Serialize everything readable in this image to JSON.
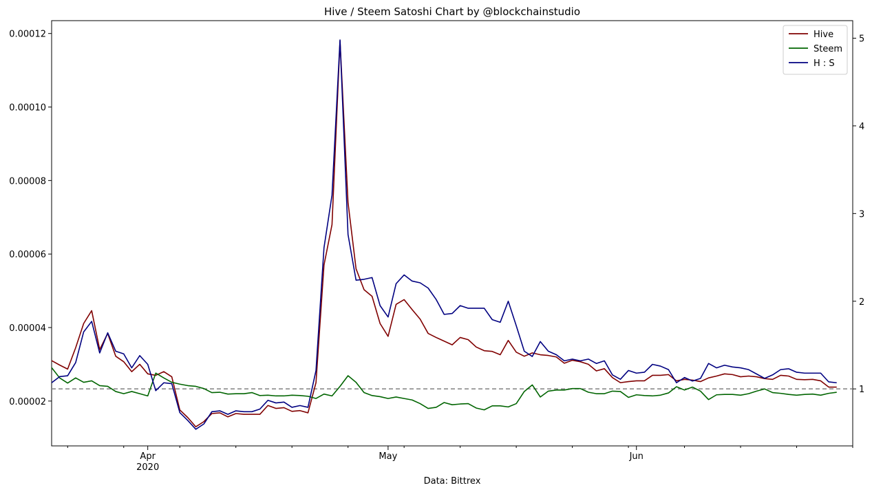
{
  "chart_data": {
    "type": "line",
    "title": "Hive / Steem Satoshi Chart by @blockchainstudio",
    "xlabel": "Data: Bittrex",
    "x_range": [
      "2020-03-20",
      "2020-06-28"
    ],
    "x_ticks": [
      {
        "date": "2020-04-01",
        "label": "Apr",
        "sublabel": "2020"
      },
      {
        "date": "2020-05-01",
        "label": "May",
        "sublabel": ""
      },
      {
        "date": "2020-06-01",
        "label": "Jun",
        "sublabel": ""
      }
    ],
    "x_minor_ticks": [
      "2020-03-22",
      "2020-03-29",
      "2020-04-05",
      "2020-04-12",
      "2020-04-19",
      "2020-04-26",
      "2020-05-03",
      "2020-05-10",
      "2020-05-17",
      "2020-05-24",
      "2020-05-31",
      "2020-06-07",
      "2020-06-14",
      "2020-06-21",
      "2020-06-28"
    ],
    "y_left": {
      "range": [
        7.8e-06,
        0.0001235
      ],
      "ticks": [
        2e-05,
        4e-05,
        6e-05,
        8e-05,
        0.0001,
        0.00012
      ],
      "tick_labels": [
        "0.00002",
        "0.00004",
        "0.00006",
        "0.00008",
        "0.00010",
        "0.00012"
      ]
    },
    "y_right": {
      "range": [
        0.35,
        5.2
      ],
      "ticks": [
        1,
        2,
        3,
        4,
        5
      ],
      "tick_labels": [
        "1",
        "2",
        "3",
        "4",
        "5"
      ]
    },
    "reference_line": {
      "axis": "right",
      "value": 1,
      "style": "dashed",
      "color": "#808080"
    },
    "legend": {
      "placement": "top-right"
    },
    "start_date": "2020-03-20",
    "series": [
      {
        "name": "Hive",
        "axis": "left",
        "color": "#800000",
        "values": [
          3.1e-05,
          2.98e-05,
          2.87e-05,
          3.45e-05,
          4.11e-05,
          4.46e-05,
          3.4e-05,
          3.84e-05,
          3.22e-05,
          3.07e-05,
          2.8e-05,
          3e-05,
          2.74e-05,
          2.7e-05,
          2.8e-05,
          2.66e-05,
          1.76e-05,
          1.55e-05,
          1.3e-05,
          1.44e-05,
          1.66e-05,
          1.68e-05,
          1.57e-05,
          1.66e-05,
          1.64e-05,
          1.64e-05,
          1.64e-05,
          1.88e-05,
          1.8e-05,
          1.82e-05,
          1.72e-05,
          1.74e-05,
          1.68e-05,
          2.5e-05,
          5.7e-05,
          6.8e-05,
          0.000118,
          7.4e-05,
          5.6e-05,
          5.03e-05,
          4.85e-05,
          4.11e-05,
          3.76e-05,
          4.63e-05,
          4.76e-05,
          4.49e-05,
          4.23e-05,
          3.84e-05,
          3.73e-05,
          3.63e-05,
          3.53e-05,
          3.73e-05,
          3.67e-05,
          3.47e-05,
          3.37e-05,
          3.35e-05,
          3.26e-05,
          3.65e-05,
          3.33e-05,
          3.22e-05,
          3.31e-05,
          3.26e-05,
          3.24e-05,
          3.2e-05,
          3.03e-05,
          3.11e-05,
          3.07e-05,
          3e-05,
          2.82e-05,
          2.88e-05,
          2.64e-05,
          2.5e-05,
          2.53e-05,
          2.55e-05,
          2.55e-05,
          2.7e-05,
          2.7e-05,
          2.72e-05,
          2.55e-05,
          2.59e-05,
          2.57e-05,
          2.53e-05,
          2.63e-05,
          2.68e-05,
          2.74e-05,
          2.72e-05,
          2.66e-05,
          2.68e-05,
          2.66e-05,
          2.61e-05,
          2.59e-05,
          2.7e-05,
          2.68e-05,
          2.59e-05,
          2.58e-05,
          2.59e-05,
          2.55e-05,
          2.38e-05,
          2.38e-05
        ]
      },
      {
        "name": "Steem",
        "axis": "left",
        "color": "#006400",
        "values": [
          2.91e-05,
          2.63e-05,
          2.49e-05,
          2.63e-05,
          2.51e-05,
          2.55e-05,
          2.42e-05,
          2.4e-05,
          2.26e-05,
          2.2e-05,
          2.26e-05,
          2.2e-05,
          2.14e-05,
          2.76e-05,
          2.63e-05,
          2.51e-05,
          2.46e-05,
          2.42e-05,
          2.4e-05,
          2.34e-05,
          2.23e-05,
          2.24e-05,
          2.19e-05,
          2.2e-05,
          2.2e-05,
          2.23e-05,
          2.15e-05,
          2.16e-05,
          2.14e-05,
          2.14e-05,
          2.16e-05,
          2.15e-05,
          2.13e-05,
          2.07e-05,
          2.19e-05,
          2.14e-05,
          2.4e-05,
          2.69e-05,
          2.51e-05,
          2.23e-05,
          2.15e-05,
          2.12e-05,
          2.07e-05,
          2.11e-05,
          2.07e-05,
          2.03e-05,
          1.93e-05,
          1.8e-05,
          1.83e-05,
          1.96e-05,
          1.9e-05,
          1.92e-05,
          1.93e-05,
          1.81e-05,
          1.76e-05,
          1.87e-05,
          1.87e-05,
          1.84e-05,
          1.93e-05,
          2.26e-05,
          2.44e-05,
          2.11e-05,
          2.27e-05,
          2.3e-05,
          2.3e-05,
          2.34e-05,
          2.34e-05,
          2.24e-05,
          2.2e-05,
          2.2e-05,
          2.27e-05,
          2.26e-05,
          2.1e-05,
          2.17e-05,
          2.15e-05,
          2.14e-05,
          2.16e-05,
          2.22e-05,
          2.39e-05,
          2.3e-05,
          2.38e-05,
          2.27e-05,
          2.04e-05,
          2.17e-05,
          2.18e-05,
          2.18e-05,
          2.16e-05,
          2.2e-05,
          2.27e-05,
          2.33e-05,
          2.23e-05,
          2.21e-05,
          2.18e-05,
          2.16e-05,
          2.18e-05,
          2.19e-05,
          2.16e-05,
          2.21e-05,
          2.24e-05
        ]
      },
      {
        "name": "H : S",
        "axis": "right",
        "color": "#000080",
        "values": [
          1.07,
          1.14,
          1.15,
          1.3,
          1.65,
          1.77,
          1.41,
          1.64,
          1.43,
          1.4,
          1.24,
          1.38,
          1.28,
          0.98,
          1.07,
          1.06,
          0.73,
          0.64,
          0.54,
          0.6,
          0.74,
          0.75,
          0.71,
          0.75,
          0.74,
          0.74,
          0.77,
          0.87,
          0.84,
          0.85,
          0.79,
          0.81,
          0.79,
          1.21,
          2.61,
          3.21,
          4.98,
          2.76,
          2.24,
          2.25,
          2.27,
          1.95,
          1.82,
          2.2,
          2.3,
          2.23,
          2.21,
          2.15,
          2.02,
          1.85,
          1.86,
          1.95,
          1.92,
          1.92,
          1.92,
          1.79,
          1.76,
          2.0,
          1.72,
          1.43,
          1.37,
          1.54,
          1.43,
          1.39,
          1.32,
          1.34,
          1.32,
          1.34,
          1.29,
          1.32,
          1.16,
          1.11,
          1.21,
          1.18,
          1.19,
          1.28,
          1.26,
          1.22,
          1.07,
          1.13,
          1.09,
          1.12,
          1.29,
          1.24,
          1.27,
          1.25,
          1.24,
          1.22,
          1.17,
          1.12,
          1.16,
          1.22,
          1.23,
          1.19,
          1.18,
          1.18,
          1.18,
          1.08,
          1.07
        ]
      }
    ]
  }
}
